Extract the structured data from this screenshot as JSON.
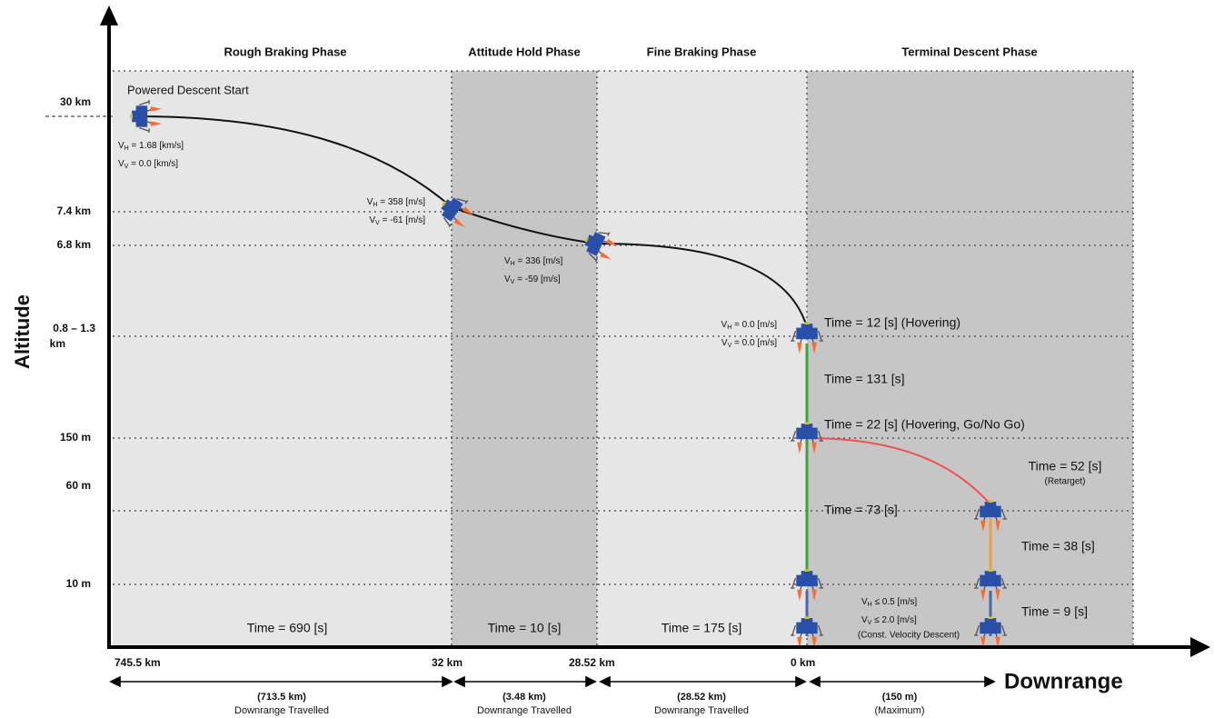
{
  "axes": {
    "y_title": "Altitude",
    "x_title": "Downrange"
  },
  "phases": [
    {
      "title": "Rough Braking Phase",
      "time": "Time = 690 [s]"
    },
    {
      "title": "Attitude Hold Phase",
      "time": "Time = 10 [s]"
    },
    {
      "title": "Fine Braking Phase",
      "time": "Time = 175 [s]"
    },
    {
      "title": "Terminal Descent Phase"
    }
  ],
  "altitude_labels": [
    [
      "30 km"
    ],
    [
      "7.4 km"
    ],
    [
      "6.8 km"
    ],
    [
      "0.8 – 1.3",
      "km"
    ],
    [
      "150 m"
    ],
    [
      "60 m"
    ],
    [
      "10 m"
    ]
  ],
  "downrange_labels": [
    "745.5 km",
    "32 km",
    "28.52 km",
    "0 km"
  ],
  "distances": [
    {
      "amount": "(713.5 km)",
      "note": "Downrange Travelled"
    },
    {
      "amount": "(3.48 km)",
      "note": "Downrange Travelled"
    },
    {
      "amount": "(28.52 km)",
      "note": "Downrange Travelled"
    },
    {
      "amount": "(150 m)",
      "note": "(Maximum)"
    }
  ],
  "start_label": "Powered Descent Start",
  "velocities": [
    [
      {
        "symbol": "V",
        "sub": "H",
        "value": " = 1.68 [km/s]"
      },
      {
        "symbol": "V",
        "sub": "V",
        "value": " =   0.0 [km/s]"
      }
    ],
    [
      {
        "symbol": "V",
        "sub": "H",
        "value": " = 358 [m/s]"
      },
      {
        "symbol": "V",
        "sub": "V",
        "value": " = -61  [m/s]"
      }
    ],
    [
      {
        "symbol": "V",
        "sub": "H",
        "value": " = 336 [m/s]"
      },
      {
        "symbol": "V",
        "sub": "V",
        "value": " = -59  [m/s]"
      }
    ],
    [
      {
        "symbol": "V",
        "sub": "H",
        "value": " = 0.0 [m/s]"
      },
      {
        "symbol": "V",
        "sub": "V",
        "value": " = 0.0 [m/s]"
      }
    ],
    [
      {
        "symbol": "V",
        "sub": "H",
        "value": " ≤ 0.5 [m/s]"
      },
      {
        "symbol": "V",
        "sub": "V",
        "value": " ≤ 2.0 [m/s]"
      }
    ]
  ],
  "const_velocity": "(Const. Velocity Descent)",
  "terminal_times": [
    "Time = 12 [s] (Hovering)",
    "Time = 131 [s]",
    "Time = 22 [s] (Hovering, Go/No Go)",
    "Time = 73 [s]",
    "Time = 52 [s]",
    "(Retarget)",
    "Time = 38 [s]",
    "Time = 9 [s]"
  ]
}
